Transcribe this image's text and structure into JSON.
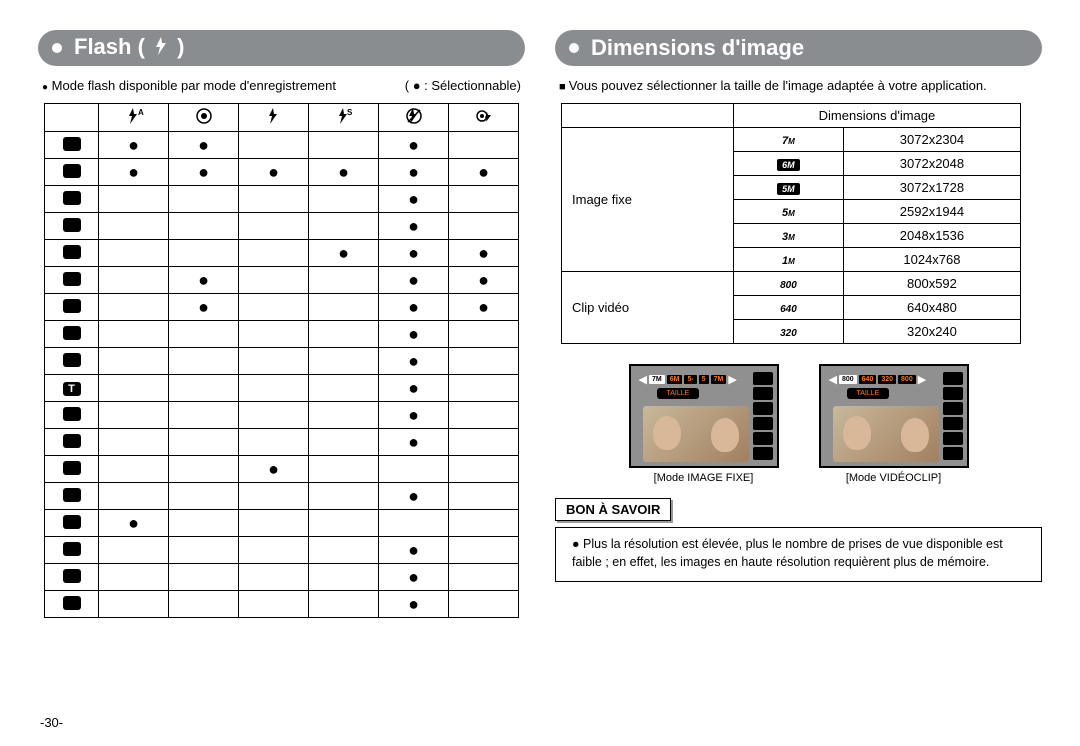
{
  "page_number": "-30-",
  "left": {
    "heading": "Flash (    )",
    "note": "Mode flash disponible par mode d'enregistrement",
    "legend": "(  ● : Sélectionnable)",
    "col_icons": [
      "flash-auto",
      "redeye",
      "flash-fill",
      "flash-slow",
      "flash-off",
      "redeye-fix"
    ],
    "row_icons": [
      "camera",
      "camera-a",
      "scene-1",
      "scene-2",
      "scene-3",
      "scene-4",
      "scene-5",
      "landscape",
      "macro",
      "text",
      "cloud",
      "sunset",
      "scene-6",
      "fireworks",
      "scene-7",
      "portrait",
      "portrait-2",
      "cafe"
    ],
    "matrix": [
      [
        1,
        1,
        0,
        0,
        1,
        0
      ],
      [
        1,
        1,
        1,
        1,
        1,
        1
      ],
      [
        0,
        0,
        0,
        0,
        1,
        0
      ],
      [
        0,
        0,
        0,
        0,
        1,
        0
      ],
      [
        0,
        0,
        0,
        1,
        1,
        1
      ],
      [
        0,
        1,
        0,
        0,
        1,
        1
      ],
      [
        0,
        1,
        0,
        0,
        1,
        1
      ],
      [
        0,
        0,
        0,
        0,
        1,
        0
      ],
      [
        0,
        0,
        0,
        0,
        1,
        0
      ],
      [
        0,
        0,
        0,
        0,
        1,
        0
      ],
      [
        0,
        0,
        0,
        0,
        1,
        0
      ],
      [
        0,
        0,
        0,
        0,
        1,
        0
      ],
      [
        0,
        0,
        1,
        0,
        0,
        0
      ],
      [
        0,
        0,
        0,
        0,
        1,
        0
      ],
      [
        1,
        0,
        0,
        0,
        0,
        0
      ],
      [
        0,
        0,
        0,
        0,
        1,
        0
      ],
      [
        0,
        0,
        0,
        0,
        1,
        0
      ],
      [
        0,
        0,
        0,
        0,
        1,
        0
      ]
    ]
  },
  "right": {
    "heading": "Dimensions d'image",
    "intro": "Vous pouvez sélectionner la taille de l'image adaptée à votre application.",
    "table_header": "Dimensions d'image",
    "section_fixed": "Image fixe",
    "section_clip": "Clip vidéo",
    "rows_fixed": [
      {
        "label": "7",
        "unit": "M",
        "style": "plain",
        "value": "3072x2304"
      },
      {
        "label": "6M",
        "style": "badge",
        "value": "3072x2048"
      },
      {
        "label": "5M",
        "style": "badge",
        "value": "3072x1728"
      },
      {
        "label": "5",
        "unit": "M",
        "style": "plain",
        "value": "2592x1944"
      },
      {
        "label": "3",
        "unit": "M",
        "style": "plain",
        "value": "2048x1536"
      },
      {
        "label": "1",
        "unit": "M",
        "style": "plain",
        "value": "1024x768"
      }
    ],
    "rows_clip": [
      {
        "label": "800",
        "style": "vid",
        "value": "800x592"
      },
      {
        "label": "640",
        "style": "vid",
        "value": "640x480"
      },
      {
        "label": "320",
        "style": "vid",
        "value": "320x240"
      }
    ],
    "lcd1": {
      "label_inside": "TAILLE",
      "chips": [
        "7M",
        "6M",
        "5-",
        "5",
        "7M"
      ],
      "caption": "[Mode IMAGE FIXE]"
    },
    "lcd2": {
      "label_inside": "TAILLE",
      "chips": [
        "800",
        "640",
        "320",
        "800"
      ],
      "caption": "[Mode VIDÉOCLIP]"
    },
    "info_title": "BON À SAVOIR",
    "info_text": "Plus la résolution est élevée, plus le nombre de prises de vue disponible est faible ; en effet, les images en haute résolution requièrent plus de mémoire."
  }
}
